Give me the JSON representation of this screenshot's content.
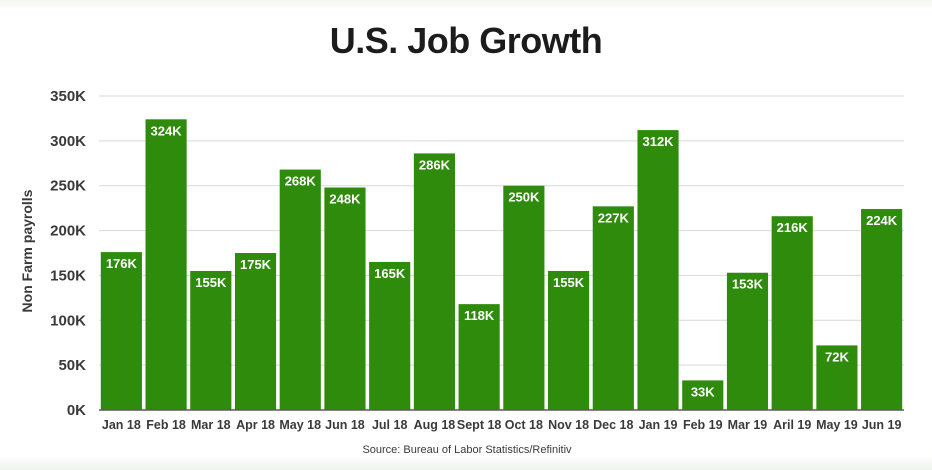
{
  "chart_data": {
    "type": "bar",
    "title": "U.S. Job Growth",
    "ylabel": "Non Farm payrolls",
    "xlabel": "",
    "source": "Source: Bureau of Labor Statistics/Refinitiv",
    "categories": [
      "Jan 18",
      "Feb 18",
      "Mar 18",
      "Apr 18",
      "May 18",
      "Jun 18",
      "Jul 18",
      "Aug 18",
      "Sept 18",
      "Oct 18",
      "Nov 18",
      "Dec 18",
      "Jan 19",
      "Feb 19",
      "Mar 19",
      "Aril 19",
      "May 19",
      "Jun 19"
    ],
    "values": [
      176000,
      324000,
      155000,
      175000,
      268000,
      248000,
      165000,
      286000,
      118000,
      250000,
      155000,
      227000,
      312000,
      33000,
      153000,
      216000,
      72000,
      224000
    ],
    "data_labels": [
      "176K",
      "324K",
      "155K",
      "175K",
      "268K",
      "248K",
      "165K",
      "286K",
      "118K",
      "250K",
      "155K",
      "227K",
      "312K",
      "33K",
      "153K",
      "216K",
      "72K",
      "224K"
    ],
    "ylim": [
      0,
      350000
    ],
    "yticks": [
      0,
      50000,
      100000,
      150000,
      200000,
      250000,
      300000,
      350000
    ],
    "ytick_labels": [
      "0K",
      "50K",
      "100K",
      "150K",
      "200K",
      "250K",
      "300K",
      "350K"
    ],
    "grid": true,
    "bar_color": "#2e8b0c"
  }
}
